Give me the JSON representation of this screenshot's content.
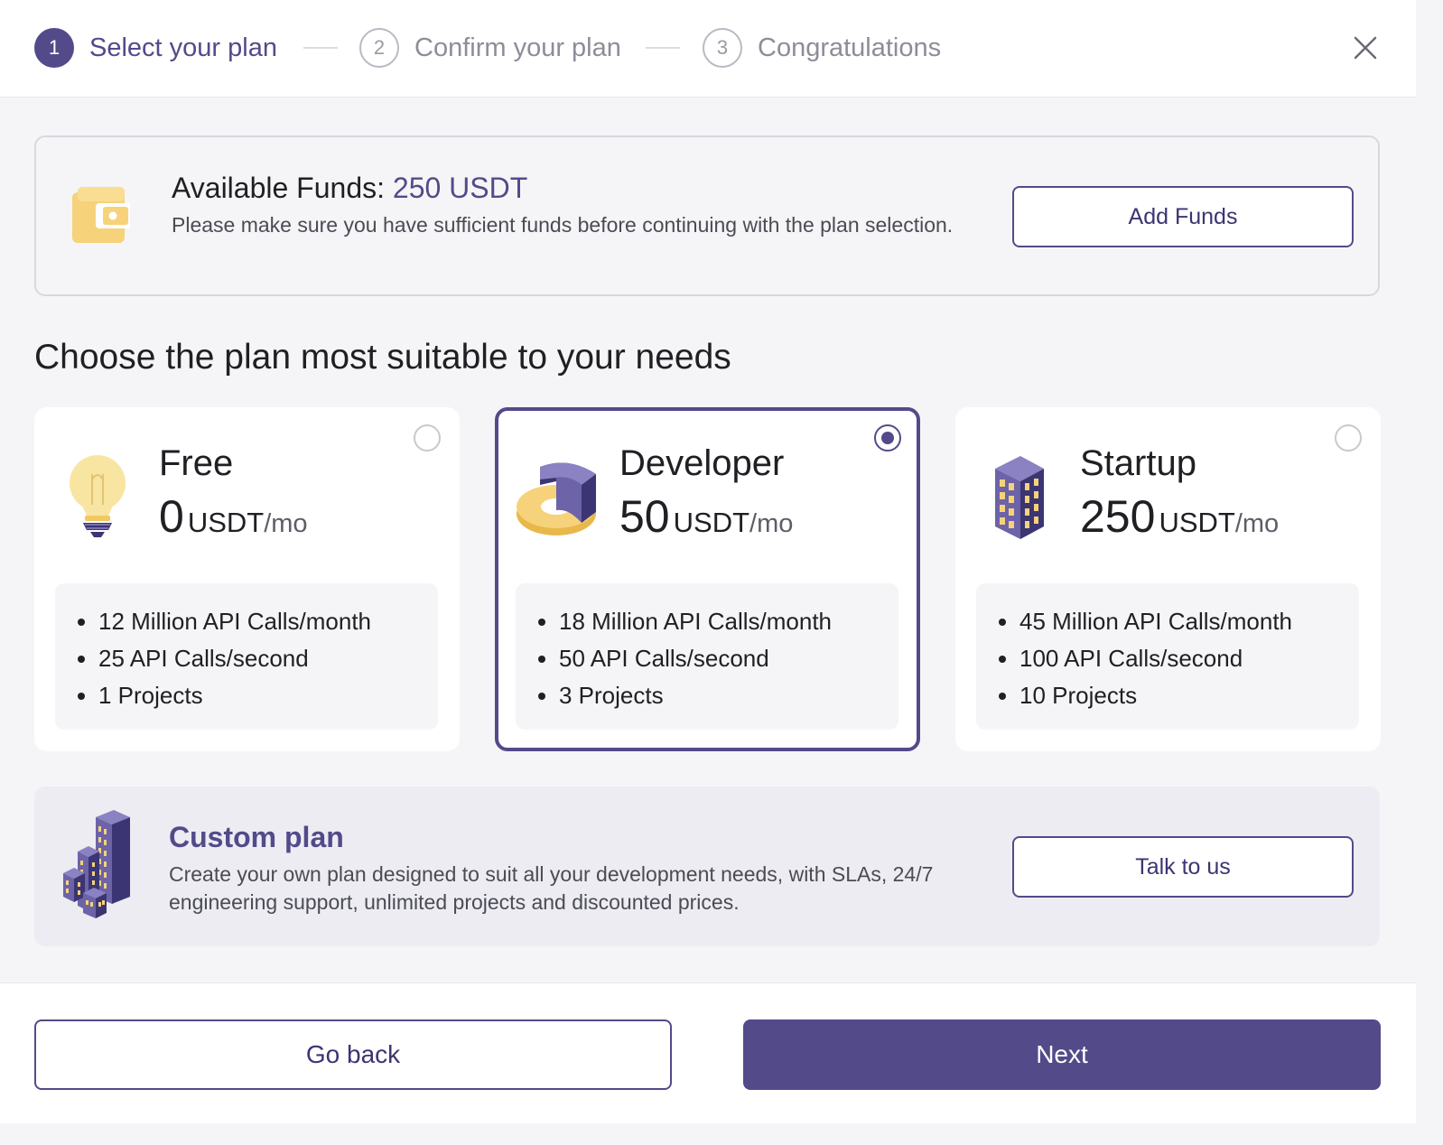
{
  "stepper": {
    "steps": [
      {
        "number": "1",
        "label": "Select your plan"
      },
      {
        "number": "2",
        "label": "Confirm your plan"
      },
      {
        "number": "3",
        "label": "Congratulations"
      }
    ],
    "close_icon": "close-icon"
  },
  "funds": {
    "title": "Available Funds:",
    "amount": "250 USDT",
    "description": "Please make sure you have sufficient funds before continuing with the plan selection.",
    "button": "Add Funds",
    "icon": "wallet-icon"
  },
  "section_heading": "Choose the plan most suitable to your needs",
  "plans": [
    {
      "name": "Free",
      "price": "0",
      "currency": "USDT",
      "period": "/mo",
      "icon": "lightbulb-icon",
      "selected": false,
      "features": [
        "12 Million API Calls/month",
        "25 API Calls/second",
        "1 Projects"
      ]
    },
    {
      "name": "Developer",
      "price": "50",
      "currency": "USDT",
      "period": "/mo",
      "icon": "donut-chart-icon",
      "selected": true,
      "features": [
        "18 Million API Calls/month",
        "50 API Calls/second",
        "3 Projects"
      ]
    },
    {
      "name": "Startup",
      "price": "250",
      "currency": "USDT",
      "period": "/mo",
      "icon": "building-icon",
      "selected": false,
      "features": [
        "45 Million API Calls/month",
        "100 API Calls/second",
        "10 Projects"
      ]
    }
  ],
  "custom_plan": {
    "title": "Custom plan",
    "description": "Create your own plan designed to suit all your development needs, with SLAs, 24/7 engineering support, unlimited projects and discounted prices.",
    "button": "Talk to us",
    "icon": "city-buildings-icon"
  },
  "footer": {
    "back": "Go back",
    "next": "Next"
  },
  "colors": {
    "accent": "#534a8a",
    "icon_yellow": "#f6d27a",
    "background": "#f5f5f7"
  }
}
